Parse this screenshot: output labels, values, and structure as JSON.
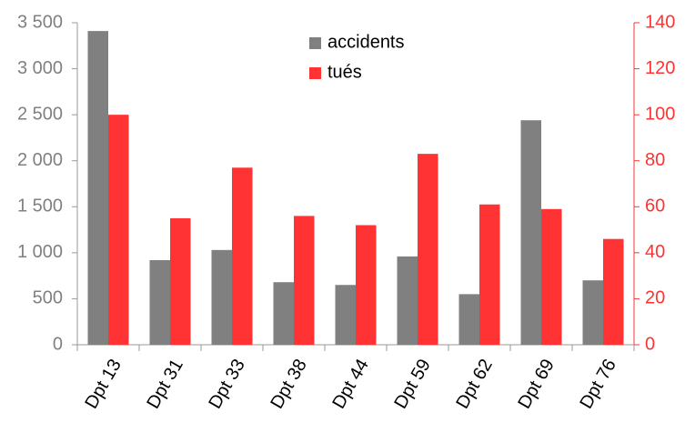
{
  "chart_data": {
    "type": "bar",
    "categories": [
      "Dpt 13",
      "Dpt 31",
      "Dpt 33",
      "Dpt 38",
      "Dpt 44",
      "Dpt 59",
      "Dpt 62",
      "Dpt 69",
      "Dpt 76"
    ],
    "series": [
      {
        "name": "accidents",
        "color": "#808080",
        "values": [
          3410,
          920,
          1030,
          680,
          650,
          960,
          550,
          2440,
          700
        ]
      },
      {
        "name": "tués",
        "color": "#ff3333",
        "axis": "y2",
        "values": [
          100,
          55,
          77,
          56,
          52,
          83,
          61,
          59,
          46
        ]
      }
    ],
    "ylim": [
      0,
      3500
    ],
    "yticks": [
      0,
      500,
      {
        "value": 1000,
        "label": "1 000"
      },
      {
        "value": 1500,
        "label": "1 500"
      },
      {
        "value": 2000,
        "label": "2 000"
      },
      {
        "value": 2500,
        "label": "2 500"
      },
      {
        "value": 3000,
        "label": "3 000"
      },
      {
        "value": 3500,
        "label": "3 500"
      }
    ],
    "y2lim": [
      0,
      140
    ],
    "y2ticks": [
      0,
      20,
      40,
      60,
      80,
      100,
      120,
      140
    ],
    "legend": "top"
  }
}
